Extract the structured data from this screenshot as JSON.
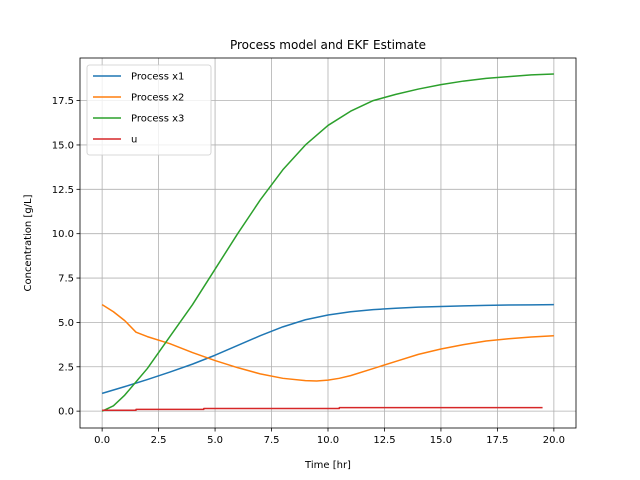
{
  "chart_data": {
    "type": "line",
    "title": "Process model and EKF Estimate",
    "xlabel": "Time [hr]",
    "ylabel": "Concentration [g/L]",
    "xlim": [
      -0.98,
      20.98
    ],
    "ylim": [
      -0.95,
      19.9
    ],
    "xticks": [
      0.0,
      2.5,
      5.0,
      7.5,
      10.0,
      12.5,
      15.0,
      17.5,
      20.0
    ],
    "xtick_labels": [
      "0.0",
      "2.5",
      "5.0",
      "7.5",
      "10.0",
      "12.5",
      "15.0",
      "17.5",
      "20.0"
    ],
    "yticks": [
      0.0,
      2.5,
      5.0,
      7.5,
      10.0,
      12.5,
      15.0,
      17.5
    ],
    "ytick_labels": [
      "0.0",
      "2.5",
      "5.0",
      "7.5",
      "10.0",
      "12.5",
      "15.0",
      "17.5"
    ],
    "grid": true,
    "legend_position": "upper-left",
    "series": [
      {
        "name": "Process x1",
        "color": "#1f77b4",
        "x": [
          0,
          1,
          2,
          3,
          4,
          5,
          6,
          7,
          8,
          9,
          10,
          11,
          12,
          13,
          14,
          15,
          16,
          17,
          18,
          19,
          20
        ],
        "y": [
          1.0,
          1.38,
          1.78,
          2.2,
          2.65,
          3.15,
          3.7,
          4.25,
          4.75,
          5.15,
          5.42,
          5.6,
          5.72,
          5.8,
          5.86,
          5.9,
          5.93,
          5.96,
          5.98,
          5.99,
          6.0
        ]
      },
      {
        "name": "Process x2",
        "color": "#ff7f0e",
        "x": [
          0,
          0.5,
          1,
          1.5,
          2,
          3,
          4,
          5,
          6,
          7,
          8,
          9,
          9.5,
          10,
          10.5,
          11,
          12,
          13,
          14,
          15,
          16,
          17,
          18,
          19,
          20
        ],
        "y": [
          6.0,
          5.6,
          5.1,
          4.45,
          4.2,
          3.8,
          3.3,
          2.85,
          2.45,
          2.1,
          1.85,
          1.72,
          1.7,
          1.75,
          1.85,
          2.0,
          2.4,
          2.8,
          3.2,
          3.5,
          3.75,
          3.95,
          4.08,
          4.18,
          4.25
        ]
      },
      {
        "name": "Process x3",
        "color": "#2ca02c",
        "x": [
          0,
          0.5,
          1,
          2,
          3,
          4,
          5,
          6,
          7,
          8,
          9,
          10,
          11,
          12,
          13,
          14,
          15,
          16,
          17,
          18,
          19,
          20
        ],
        "y": [
          0.0,
          0.3,
          0.9,
          2.4,
          4.2,
          6.0,
          8.0,
          10.0,
          11.9,
          13.6,
          15.0,
          16.1,
          16.9,
          17.5,
          17.85,
          18.15,
          18.4,
          18.6,
          18.75,
          18.85,
          18.95,
          19.0
        ]
      },
      {
        "name": " u",
        "color": "#d62728",
        "x": [
          0,
          1.5,
          1.5,
          4.5,
          4.5,
          10.5,
          10.5,
          19.5
        ],
        "y": [
          0.05,
          0.05,
          0.1,
          0.1,
          0.15,
          0.15,
          0.2,
          0.2
        ]
      }
    ]
  }
}
